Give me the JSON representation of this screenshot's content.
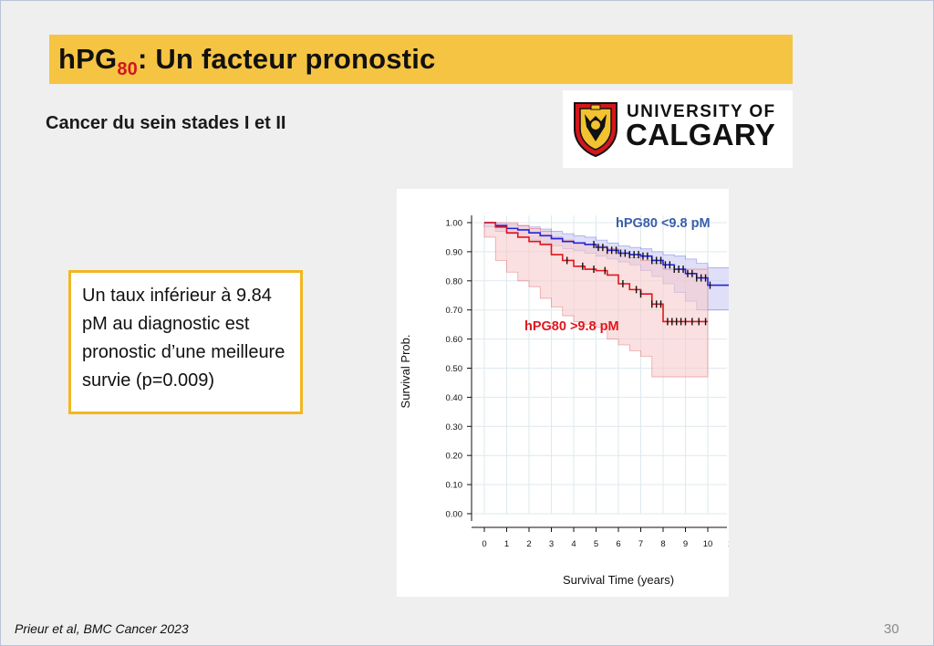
{
  "slide": {
    "title_main": "hPG",
    "title_sub": "80",
    "title_rest": ": Un facteur pronostic",
    "subtitle": "Cancer du sein stades I et II",
    "logo": {
      "line1": "UNIVERSITY OF",
      "line2": "CALGARY"
    },
    "note": "Un taux inférieur à 9.84 pM au diagnostic est pronostic d’une meilleure survie (p=0.009)",
    "reference": "Prieur et al, BMC Cancer 2023",
    "page_number": "30"
  },
  "colors": {
    "title_bar": "#f6c443",
    "subscript": "#d0161f",
    "note_border": "#f2b721",
    "series_low": "#2323d8",
    "series_high": "#e0161c",
    "band_low": "#c9c9f3",
    "band_high": "#f7cccc",
    "label_low": "#3a5fa8",
    "label_high": "#e0161c"
  },
  "chart_data": {
    "type": "line",
    "subtype": "kaplan-meier",
    "xlabel": "Survival Time (years)",
    "ylabel": "Survival Prob.",
    "xlim": [
      0,
      11
    ],
    "ylim": [
      0,
      1
    ],
    "x_ticks": [
      "0",
      "1",
      "2",
      "3",
      "4",
      "5",
      "6",
      "7",
      "8",
      "9",
      "10",
      "1"
    ],
    "y_ticks": [
      "0.00",
      "0.10",
      "0.20",
      "0.30",
      "0.40",
      "0.50",
      "0.60",
      "0.70",
      "0.80",
      "0.90",
      "1.00"
    ],
    "grid": true,
    "series": [
      {
        "name": "hPG80 <9.8 pM",
        "color": "#2323d8",
        "x": [
          0,
          0.5,
          1,
          1.5,
          2,
          2.5,
          3,
          3.5,
          4,
          4.5,
          5,
          5.5,
          6,
          6.5,
          7,
          7.5,
          8,
          8.5,
          9,
          9.5,
          10,
          11
        ],
        "y": [
          1.0,
          0.99,
          0.98,
          0.975,
          0.965,
          0.955,
          0.945,
          0.935,
          0.93,
          0.925,
          0.915,
          0.905,
          0.895,
          0.89,
          0.885,
          0.87,
          0.855,
          0.84,
          0.825,
          0.81,
          0.785,
          0.78
        ],
        "ci_lower": [
          1.0,
          0.985,
          0.97,
          0.96,
          0.95,
          0.94,
          0.93,
          0.92,
          0.91,
          0.905,
          0.895,
          0.885,
          0.875,
          0.865,
          0.855,
          0.835,
          0.815,
          0.79,
          0.76,
          0.73,
          0.7,
          0.7
        ],
        "ci_upper": [
          1.0,
          0.998,
          0.995,
          0.99,
          0.985,
          0.978,
          0.97,
          0.962,
          0.955,
          0.95,
          0.94,
          0.93,
          0.92,
          0.915,
          0.91,
          0.9,
          0.89,
          0.885,
          0.875,
          0.86,
          0.845,
          0.845
        ],
        "censor_x": [
          4.9,
          5.1,
          5.3,
          5.5,
          5.7,
          5.9,
          6.1,
          6.3,
          6.5,
          6.7,
          6.9,
          7.1,
          7.3,
          7.5,
          7.7,
          7.9,
          8.1,
          8.3,
          8.5,
          8.7,
          8.9,
          9.1,
          9.3,
          9.5,
          9.7,
          9.9,
          10.1
        ]
      },
      {
        "name": "hPG80 >9.8 pM",
        "color": "#e0161c",
        "x": [
          0,
          0.5,
          1,
          1.5,
          2,
          2.5,
          3,
          3.5,
          4,
          4.5,
          5,
          5.5,
          6,
          6.5,
          7,
          7.5,
          8,
          8.5,
          9,
          9.5,
          10
        ],
        "y": [
          1.0,
          0.985,
          0.965,
          0.95,
          0.935,
          0.925,
          0.89,
          0.87,
          0.85,
          0.84,
          0.835,
          0.82,
          0.79,
          0.77,
          0.755,
          0.72,
          0.66,
          0.66,
          0.66,
          0.66,
          0.66
        ],
        "ci_lower": [
          1.0,
          0.95,
          0.87,
          0.83,
          0.8,
          0.78,
          0.74,
          0.71,
          0.68,
          0.66,
          0.65,
          0.64,
          0.6,
          0.58,
          0.56,
          0.54,
          0.47,
          0.47,
          0.47,
          0.47,
          0.47
        ],
        "ci_upper": [
          1.0,
          1.0,
          1.0,
          0.99,
          0.98,
          0.97,
          0.95,
          0.94,
          0.93,
          0.925,
          0.92,
          0.91,
          0.895,
          0.88,
          0.87,
          0.86,
          0.84,
          0.84,
          0.84,
          0.84,
          0.84
        ],
        "censor_x": [
          3.7,
          4.4,
          4.9,
          5.4,
          6.2,
          6.8,
          7.0,
          7.5,
          7.7,
          7.9,
          8.2,
          8.4,
          8.6,
          8.8,
          9.0,
          9.3,
          9.6,
          9.9
        ]
      }
    ],
    "annotations": [
      {
        "text": "hPG80 <9.8 pM",
        "color": "#3a5fa8",
        "x": 5.8,
        "y": 1.0
      },
      {
        "text": "hPG80 >9.8 pM",
        "color": "#e0161c",
        "x": 1.8,
        "y": 0.66
      }
    ]
  }
}
